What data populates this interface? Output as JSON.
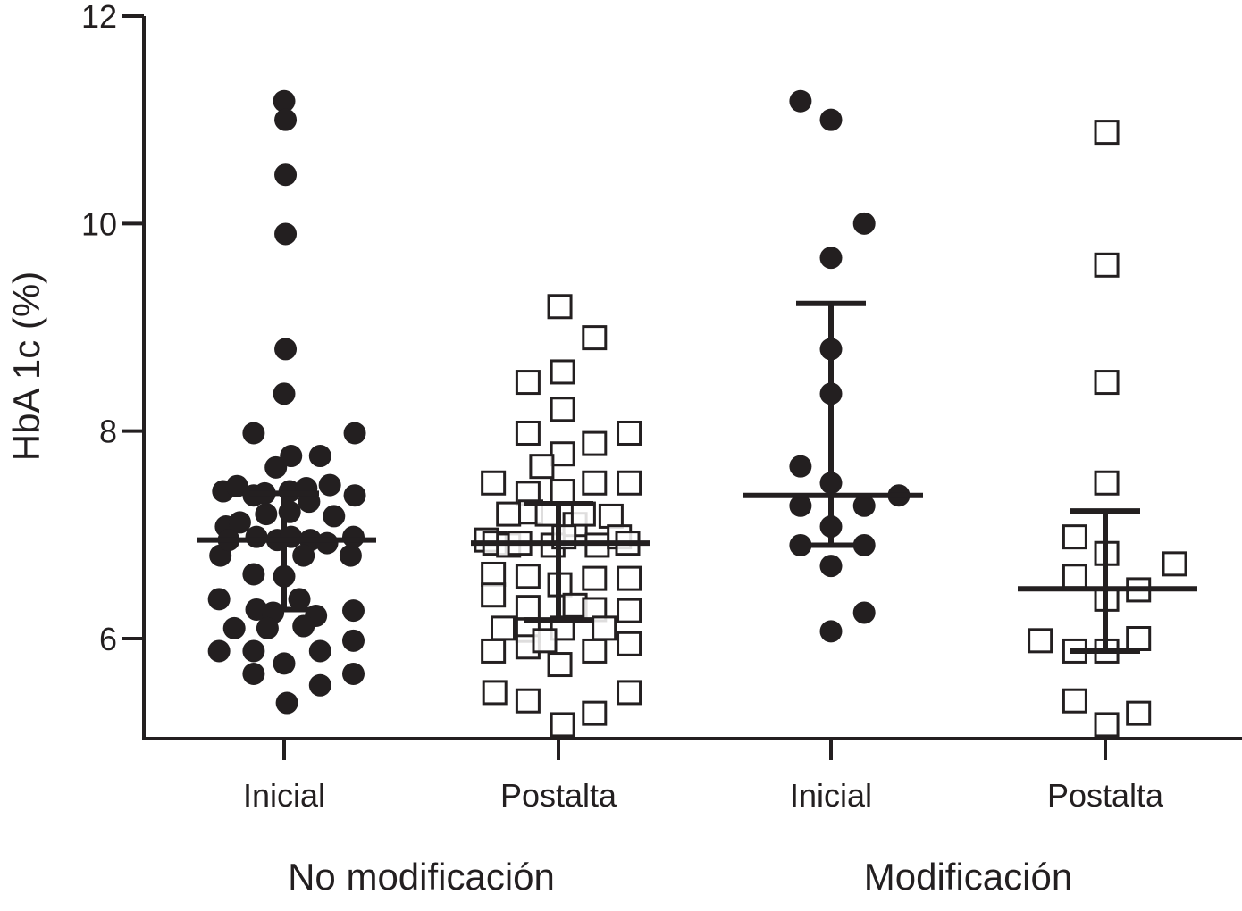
{
  "chart_data": {
    "type": "scatter",
    "ylabel": "HbA 1c (%)",
    "ylim": [
      5,
      12
    ],
    "yticks": [
      6,
      8,
      10,
      12
    ],
    "categories": [
      "Inicial",
      "Postalta",
      "Inicial",
      "Postalta"
    ],
    "groups": [
      {
        "label": "No modificación",
        "categories": [
          0,
          1
        ]
      },
      {
        "label": "Modificación",
        "categories": [
          2,
          3
        ]
      }
    ],
    "colors": {
      "ink": "#231f20",
      "background": "#ffffff"
    },
    "series": [
      {
        "category": "Inicial",
        "group": "No modificación",
        "marker": "filled-circle",
        "median": 6.95,
        "iqr": [
          6.28,
          7.4
        ],
        "points": [
          [
            0,
            11.18
          ],
          [
            0.005,
            11.0
          ],
          [
            0.005,
            10.47
          ],
          [
            0.005,
            9.9
          ],
          [
            0.005,
            8.79
          ],
          [
            0,
            8.36
          ],
          [
            -0.11,
            7.98
          ],
          [
            0.025,
            7.76
          ],
          [
            0.13,
            7.76
          ],
          [
            0.255,
            7.98
          ],
          [
            -0.03,
            7.65
          ],
          [
            -0.22,
            7.42
          ],
          [
            -0.17,
            7.47
          ],
          [
            -0.11,
            7.38
          ],
          [
            -0.07,
            7.4
          ],
          [
            0.02,
            7.42
          ],
          [
            0.08,
            7.45
          ],
          [
            0.165,
            7.48
          ],
          [
            0.255,
            7.38
          ],
          [
            -0.21,
            7.08
          ],
          [
            -0.16,
            7.12
          ],
          [
            -0.065,
            7.2
          ],
          [
            0.02,
            7.22
          ],
          [
            0.09,
            7.32
          ],
          [
            0.18,
            7.18
          ],
          [
            -0.23,
            6.8
          ],
          [
            -0.2,
            6.95
          ],
          [
            -0.1,
            6.98
          ],
          [
            -0.025,
            6.95
          ],
          [
            0.025,
            6.98
          ],
          [
            0.095,
            6.95
          ],
          [
            0.155,
            6.92
          ],
          [
            0.24,
            6.8
          ],
          [
            0.25,
            6.98
          ],
          [
            -0.11,
            6.62
          ],
          [
            0.0,
            6.6
          ],
          [
            0.07,
            6.8
          ],
          [
            -0.235,
            6.38
          ],
          [
            -0.1,
            6.28
          ],
          [
            -0.04,
            6.25
          ],
          [
            0.055,
            6.38
          ],
          [
            0.115,
            6.22
          ],
          [
            0.25,
            6.27
          ],
          [
            -0.18,
            6.1
          ],
          [
            -0.06,
            6.1
          ],
          [
            0.07,
            6.12
          ],
          [
            -0.235,
            5.88
          ],
          [
            -0.11,
            5.88
          ],
          [
            0.0,
            5.76
          ],
          [
            0.13,
            5.88
          ],
          [
            0.25,
            5.98
          ],
          [
            -0.11,
            5.66
          ],
          [
            0.13,
            5.55
          ],
          [
            0.25,
            5.66
          ],
          [
            0.01,
            5.38
          ]
        ]
      },
      {
        "category": "Postalta",
        "group": "No modificación",
        "marker": "open-square",
        "median": 6.92,
        "iqr": [
          6.18,
          7.3
        ],
        "points": [
          [
            0.005,
            9.2
          ],
          [
            0.13,
            8.9
          ],
          [
            -0.11,
            8.47
          ],
          [
            0.015,
            8.57
          ],
          [
            0.015,
            8.21
          ],
          [
            -0.11,
            7.98
          ],
          [
            0.015,
            7.78
          ],
          [
            0.13,
            7.88
          ],
          [
            0.255,
            7.98
          ],
          [
            -0.06,
            7.66
          ],
          [
            -0.235,
            7.5
          ],
          [
            -0.11,
            7.4
          ],
          [
            0.015,
            7.42
          ],
          [
            0.13,
            7.5
          ],
          [
            0.255,
            7.5
          ],
          [
            -0.18,
            7.2
          ],
          [
            -0.1,
            7.22
          ],
          [
            -0.04,
            7.2
          ],
          [
            0.06,
            7.1
          ],
          [
            0.09,
            7.2
          ],
          [
            0.19,
            7.18
          ],
          [
            -0.26,
            6.95
          ],
          [
            -0.23,
            6.92
          ],
          [
            -0.18,
            6.9
          ],
          [
            -0.14,
            6.92
          ],
          [
            -0.02,
            6.9
          ],
          [
            0.02,
            6.98
          ],
          [
            0.14,
            6.9
          ],
          [
            0.22,
            6.98
          ],
          [
            0.25,
            6.92
          ],
          [
            -0.235,
            6.62
          ],
          [
            -0.11,
            6.6
          ],
          [
            0.005,
            6.52
          ],
          [
            0.13,
            6.58
          ],
          [
            0.255,
            6.58
          ],
          [
            -0.235,
            6.42
          ],
          [
            -0.11,
            6.3
          ],
          [
            0.06,
            6.32
          ],
          [
            0.13,
            6.28
          ],
          [
            0.255,
            6.27
          ],
          [
            -0.2,
            6.1
          ],
          [
            -0.11,
            6.08
          ],
          [
            0.015,
            6.1
          ],
          [
            0.165,
            6.1
          ],
          [
            -0.235,
            5.88
          ],
          [
            -0.11,
            5.92
          ],
          [
            -0.05,
            5.98
          ],
          [
            0.005,
            5.75
          ],
          [
            0.13,
            5.88
          ],
          [
            0.255,
            5.95
          ],
          [
            -0.23,
            5.48
          ],
          [
            -0.11,
            5.4
          ],
          [
            0.13,
            5.28
          ],
          [
            0.255,
            5.48
          ],
          [
            0.015,
            5.17
          ]
        ]
      },
      {
        "category": "Inicial",
        "group": "Modificación",
        "marker": "filled-circle",
        "median": 7.38,
        "iqr": [
          6.9,
          9.23
        ],
        "points": [
          [
            -0.11,
            11.18
          ],
          [
            0.0,
            11.0
          ],
          [
            0.12,
            10.0
          ],
          [
            0.0,
            9.67
          ],
          [
            0.0,
            8.79
          ],
          [
            0.0,
            8.36
          ],
          [
            -0.11,
            7.66
          ],
          [
            0.0,
            7.5
          ],
          [
            0.245,
            7.38
          ],
          [
            -0.11,
            7.28
          ],
          [
            0.0,
            7.08
          ],
          [
            0.12,
            7.28
          ],
          [
            -0.11,
            6.9
          ],
          [
            0.12,
            6.9
          ],
          [
            0.0,
            6.7
          ],
          [
            0.12,
            6.25
          ],
          [
            0.0,
            6.07
          ]
        ]
      },
      {
        "category": "Postalta",
        "group": "Modificación",
        "marker": "open-square",
        "median": 6.48,
        "iqr": [
          5.88,
          7.23
        ],
        "points": [
          [
            0.005,
            10.88
          ],
          [
            0.005,
            9.6
          ],
          [
            0.005,
            8.47
          ],
          [
            0.005,
            7.5
          ],
          [
            -0.11,
            6.98
          ],
          [
            0.005,
            6.82
          ],
          [
            0.25,
            6.72
          ],
          [
            -0.11,
            6.6
          ],
          [
            0.005,
            6.38
          ],
          [
            0.12,
            6.47
          ],
          [
            -0.235,
            5.98
          ],
          [
            -0.11,
            5.88
          ],
          [
            0.005,
            5.88
          ],
          [
            0.12,
            6.0
          ],
          [
            -0.11,
            5.4
          ],
          [
            0.12,
            5.28
          ],
          [
            0.005,
            5.17
          ]
        ]
      }
    ]
  }
}
